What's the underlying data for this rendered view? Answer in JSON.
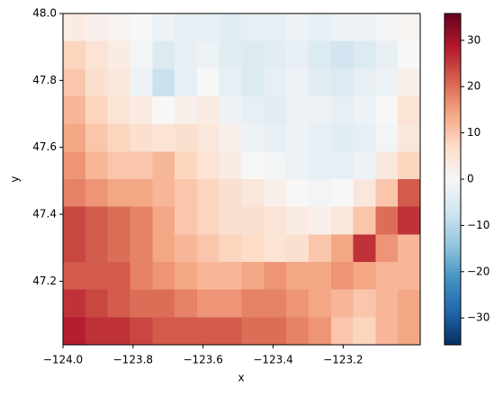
{
  "chart_data": {
    "type": "heatmap",
    "x_label": "x",
    "y_label": "y",
    "xlim": [
      -124.0,
      -122.98
    ],
    "ylim": [
      47.01,
      48.0
    ],
    "xticks": [
      {
        "value": -124.0,
        "label": "−124.0"
      },
      {
        "value": -123.8,
        "label": "−123.8"
      },
      {
        "value": -123.6,
        "label": "−123.6"
      },
      {
        "value": -123.4,
        "label": "−123.4"
      },
      {
        "value": -123.2,
        "label": "−123.2"
      }
    ],
    "yticks": [
      47.2,
      47.4,
      47.6,
      47.8,
      {
        "value": 48.0,
        "label": "48.0"
      }
    ],
    "colormap": "RdBu_r",
    "clim": [
      -35.8,
      35.8
    ],
    "cticks": [
      {
        "value": -30,
        "label": "−30"
      },
      {
        "value": -20,
        "label": "−20"
      },
      {
        "value": -10,
        "label": "−10"
      },
      0,
      10,
      20,
      30
    ],
    "z": [
      [
        3,
        2,
        1,
        0,
        -2,
        -3,
        -3,
        -4,
        -3,
        -3,
        -2,
        -3,
        -2,
        -2,
        -1,
        1
      ],
      [
        8,
        5,
        3,
        -1,
        -5,
        -3,
        -2,
        -4,
        -5,
        -4,
        -3,
        -5,
        -7,
        -5,
        -3,
        0
      ],
      [
        10,
        6,
        4,
        -2,
        -8,
        -3,
        0,
        -3,
        -5,
        -3,
        -2,
        -4,
        -5,
        -3,
        -2,
        2
      ],
      [
        12,
        8,
        5,
        3,
        0,
        2,
        3,
        -2,
        -3,
        -4,
        -2,
        -2,
        -3,
        -2,
        0,
        5
      ],
      [
        14,
        10,
        8,
        6,
        5,
        6,
        4,
        2,
        -2,
        -3,
        -2,
        -3,
        -4,
        -3,
        -1,
        4
      ],
      [
        16,
        12,
        10,
        10,
        12,
        8,
        5,
        3,
        0,
        -1,
        -2,
        -3,
        -3,
        -2,
        4,
        8
      ],
      [
        18,
        16,
        14,
        14,
        12,
        10,
        8,
        6,
        4,
        2,
        0,
        -1,
        0,
        4,
        10,
        22
      ],
      [
        24,
        22,
        20,
        18,
        14,
        10,
        8,
        6,
        6,
        5,
        3,
        2,
        4,
        10,
        20,
        26
      ],
      [
        24,
        22,
        20,
        18,
        14,
        12,
        10,
        8,
        7,
        5,
        6,
        10,
        14,
        26,
        16,
        12
      ],
      [
        22,
        22,
        22,
        18,
        16,
        14,
        12,
        12,
        14,
        16,
        14,
        14,
        16,
        14,
        12,
        12
      ],
      [
        26,
        24,
        22,
        20,
        20,
        18,
        16,
        16,
        18,
        18,
        16,
        14,
        12,
        10,
        12,
        14
      ],
      [
        28,
        26,
        26,
        24,
        22,
        22,
        22,
        22,
        20,
        20,
        18,
        16,
        10,
        8,
        12,
        14
      ]
    ]
  }
}
